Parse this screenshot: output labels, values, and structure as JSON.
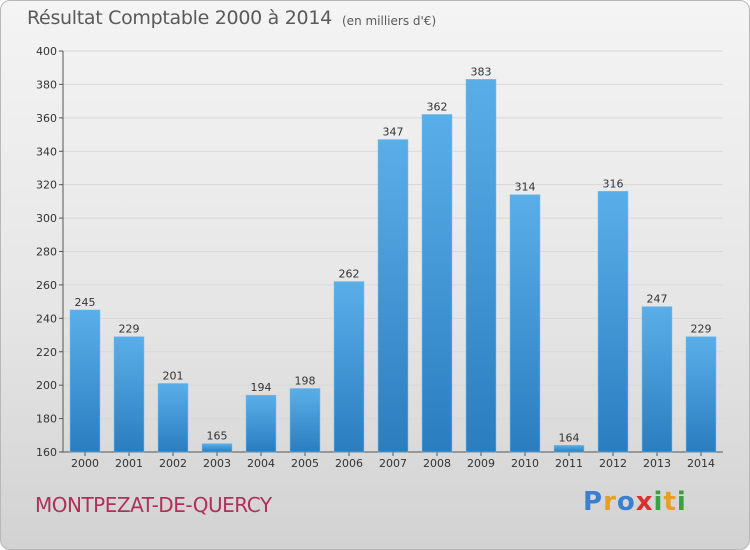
{
  "header": {
    "title": "Résultat Comptable 2000 à 2014",
    "subtitle": "(en milliers d'€)"
  },
  "footer": {
    "commune": "MONTPEZAT-DE-QUERCY",
    "logo": "Proxiti"
  },
  "colors": {
    "bar_top": "#5aaee8",
    "bar_bottom": "#2a7ec0",
    "commune_text": "#b0305a",
    "grid": "#d8d8d8"
  },
  "chart_data": {
    "type": "bar",
    "categories": [
      "2000",
      "2001",
      "2002",
      "2003",
      "2004",
      "2005",
      "2006",
      "2007",
      "2008",
      "2009",
      "2010",
      "2011",
      "2012",
      "2013",
      "2014"
    ],
    "values": [
      245,
      229,
      201,
      165,
      194,
      198,
      262,
      347,
      362,
      383,
      314,
      164,
      316,
      247,
      229
    ],
    "title": "Résultat Comptable 2000 à 2014",
    "xlabel": "",
    "ylabel": "",
    "ylim": [
      160,
      400
    ],
    "yticks": [
      160,
      180,
      200,
      220,
      240,
      260,
      280,
      300,
      320,
      340,
      360,
      380,
      400
    ],
    "grid": true,
    "data_labels": true
  }
}
